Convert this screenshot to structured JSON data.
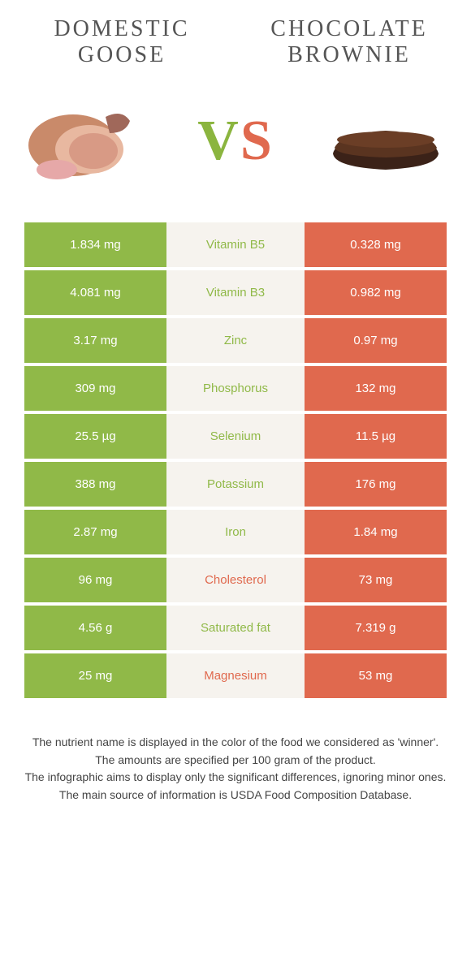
{
  "colors": {
    "green": "#90b948",
    "orange": "#e0694e",
    "light_bg": "#f6f3ee"
  },
  "left_food": {
    "name": "DOMESTIC GOOSE"
  },
  "right_food": {
    "name": "CHOCOLATE BROWNIE"
  },
  "vs": {
    "v": "V",
    "s": "S"
  },
  "rows": [
    {
      "nutrient": "Vitamin B5",
      "left": "1.834 mg",
      "right": "0.328 mg",
      "winner": "green"
    },
    {
      "nutrient": "Vitamin B3",
      "left": "4.081 mg",
      "right": "0.982 mg",
      "winner": "green"
    },
    {
      "nutrient": "Zinc",
      "left": "3.17 mg",
      "right": "0.97 mg",
      "winner": "green"
    },
    {
      "nutrient": "Phosphorus",
      "left": "309 mg",
      "right": "132 mg",
      "winner": "green"
    },
    {
      "nutrient": "Selenium",
      "left": "25.5 µg",
      "right": "11.5 µg",
      "winner": "green"
    },
    {
      "nutrient": "Potassium",
      "left": "388 mg",
      "right": "176 mg",
      "winner": "green"
    },
    {
      "nutrient": "Iron",
      "left": "2.87 mg",
      "right": "1.84 mg",
      "winner": "green"
    },
    {
      "nutrient": "Cholesterol",
      "left": "96 mg",
      "right": "73 mg",
      "winner": "orange"
    },
    {
      "nutrient": "Saturated fat",
      "left": "4.56 g",
      "right": "7.319 g",
      "winner": "green"
    },
    {
      "nutrient": "Magnesium",
      "left": "25 mg",
      "right": "53 mg",
      "winner": "orange"
    }
  ],
  "footnotes": [
    "The nutrient name is displayed in the color of the food we considered as 'winner'.",
    "The amounts are specified per 100 gram of the product.",
    "The infographic aims to display only the significant differences, ignoring minor ones.",
    "The main source of information is USDA Food Composition Database."
  ]
}
